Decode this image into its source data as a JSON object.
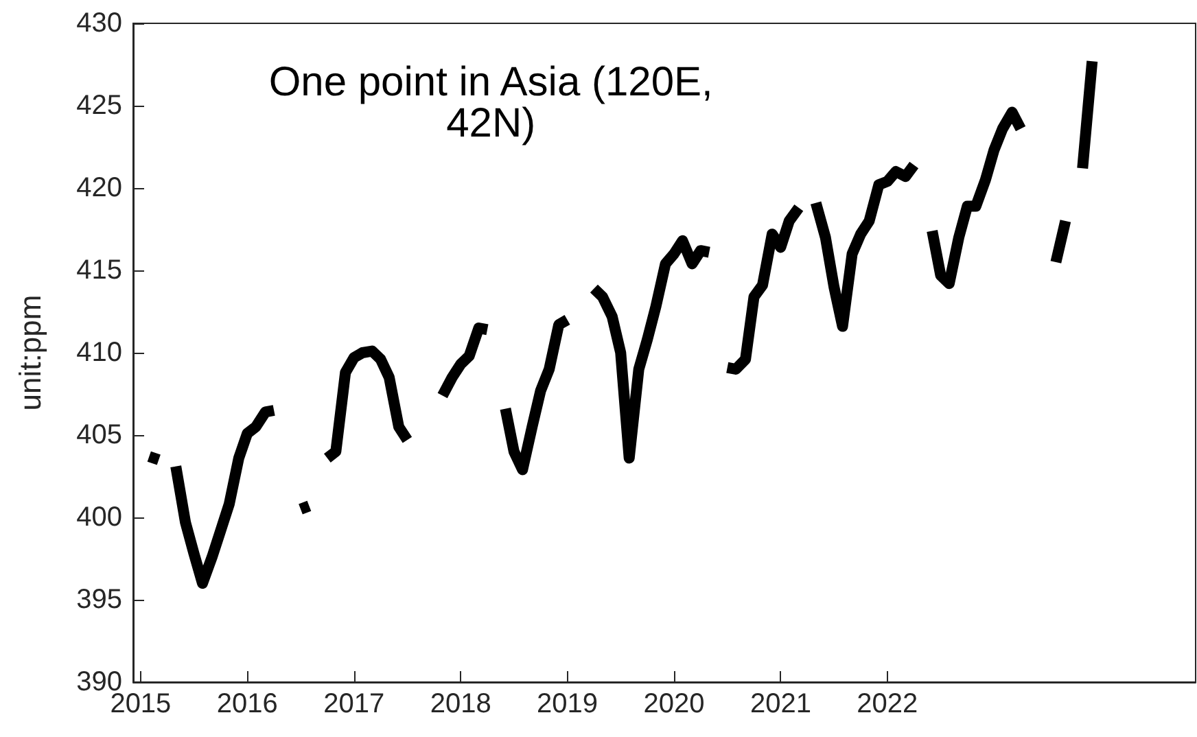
{
  "chart_data": {
    "type": "line",
    "ylabel": "unit:ppm",
    "annotations": [
      "One point in Asia (120E,\n42N)"
    ],
    "xlim": [
      2014.93,
      2024.89
    ],
    "xticks": [
      2015,
      2016,
      2017,
      2018,
      2019,
      2020,
      2021,
      2022
    ],
    "ylim": [
      390,
      430
    ],
    "yticks": [
      390,
      395,
      400,
      405,
      410,
      415,
      420,
      425,
      430
    ],
    "grid": false,
    "marker": "none",
    "line_style": "solid",
    "series": [
      {
        "color": "#000000",
        "x": [
          2015.08,
          2015.17,
          2015.25,
          2015.33,
          2015.42,
          2015.5,
          2015.58,
          2015.67,
          2015.75,
          2015.83,
          2015.92,
          2016.0,
          2016.08,
          2016.17,
          2016.25,
          2016.42,
          2016.5,
          2016.58,
          2016.67,
          2016.75,
          2016.83,
          2016.92,
          2017.0,
          2017.08,
          2017.17,
          2017.25,
          2017.33,
          2017.42,
          2017.5,
          2017.67,
          2017.83,
          2017.92,
          2018.0,
          2018.08,
          2018.17,
          2018.25,
          2018.33,
          2018.42,
          2018.5,
          2018.58,
          2018.67,
          2018.75,
          2018.83,
          2018.92,
          2019.0,
          2019.08,
          2019.25,
          2019.33,
          2019.42,
          2019.5,
          2019.58,
          2019.67,
          2019.75,
          2019.83,
          2019.92,
          2020.0,
          2020.08,
          2020.17,
          2020.25,
          2020.33,
          2020.42,
          2020.5,
          2020.58,
          2020.67,
          2020.75,
          2020.83,
          2020.92,
          2021.0,
          2021.08,
          2021.17,
          2021.25,
          2021.33,
          2021.42,
          2021.5,
          2021.58,
          2021.67,
          2021.75,
          2021.83,
          2021.92,
          2022.0,
          2022.08,
          2022.17,
          2022.25,
          2022.33,
          2022.42,
          2022.5,
          2022.58,
          2022.67,
          2022.75,
          2022.83,
          2022.92,
          2023.0,
          2023.08,
          2023.17,
          2023.25,
          2023.42,
          2023.58,
          2023.67,
          2023.75,
          2023.83,
          2023.92
        ],
        "values": [
          403.7,
          403.5,
          null,
          403.1,
          399.7,
          397.8,
          396.0,
          397.6,
          399.2,
          400.8,
          403.6,
          405.1,
          405.5,
          406.4,
          406.5,
          null,
          400.5,
          400.7,
          null,
          403.6,
          404.0,
          408.8,
          409.7,
          410.0,
          410.1,
          409.6,
          408.5,
          405.5,
          404.7,
          null,
          407.4,
          408.5,
          409.3,
          409.8,
          411.5,
          411.4,
          null,
          406.6,
          404.0,
          402.9,
          405.5,
          407.7,
          409.0,
          411.7,
          412.0,
          null,
          413.9,
          413.4,
          412.2,
          410.0,
          403.6,
          409.0,
          410.8,
          412.8,
          415.4,
          416.0,
          416.8,
          415.4,
          416.2,
          416.1,
          null,
          409.1,
          409.0,
          409.6,
          413.4,
          414.1,
          417.2,
          416.4,
          418.0,
          418.8,
          null,
          419.1,
          417.0,
          414.0,
          411.6,
          416.0,
          417.2,
          418.0,
          420.2,
          420.4,
          421.0,
          420.7,
          421.4,
          null,
          417.4,
          414.7,
          414.2,
          417.0,
          418.9,
          418.9,
          420.5,
          422.3,
          423.6,
          424.6,
          423.6,
          null,
          415.5,
          418.0,
          null,
          421.2,
          427.7
        ]
      }
    ]
  }
}
